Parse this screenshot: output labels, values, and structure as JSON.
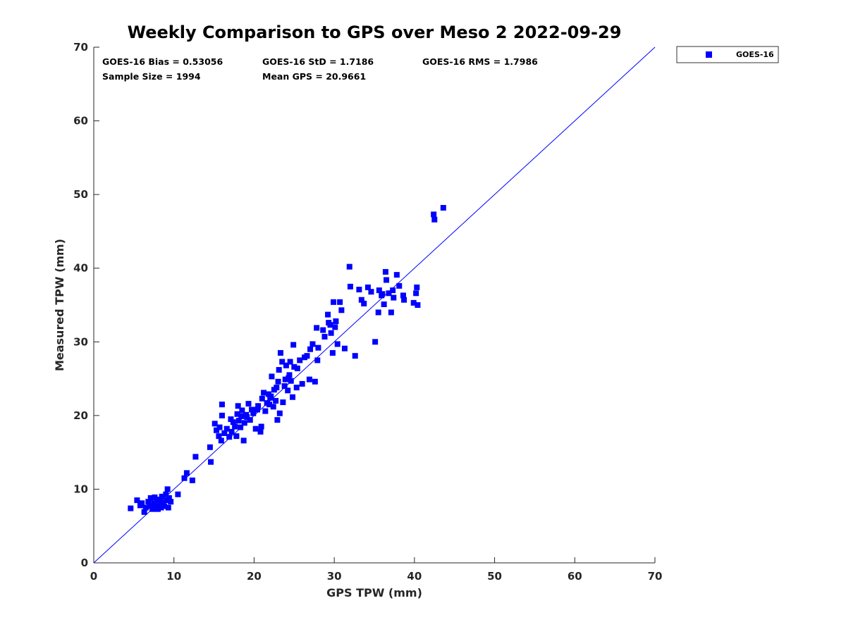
{
  "chart_data": {
    "type": "scatter",
    "title": "Weekly Comparison to GPS over Meso 2 2022-09-29",
    "xlabel": "GPS TPW (mm)",
    "ylabel": "Measured TPW (mm)",
    "xlim": [
      0,
      70
    ],
    "ylim": [
      0,
      70
    ],
    "xticks": [
      "0",
      "10",
      "20",
      "30",
      "40",
      "50",
      "60",
      "70"
    ],
    "yticks": [
      "0",
      "10",
      "20",
      "30",
      "40",
      "50",
      "60",
      "70"
    ],
    "grid": false,
    "legend": {
      "placement": "outside-top-right",
      "entries": [
        "GOES-16"
      ]
    },
    "reference_line": {
      "from": [
        0,
        0
      ],
      "to": [
        70,
        70
      ],
      "color": "#0000ff"
    },
    "stats": [
      "GOES-16 Bias = 0.53056",
      "GOES-16 StD = 1.7186",
      "GOES-16 RMS = 1.7986",
      "Sample Size = 1994",
      "Mean GPS = 20.9661"
    ],
    "series": [
      {
        "name": "GOES-16",
        "color": "#0000ff",
        "marker": "square",
        "points": [
          [
            4.6,
            7.4
          ],
          [
            5.4,
            8.5
          ],
          [
            5.8,
            7.8
          ],
          [
            6.0,
            8.1
          ],
          [
            6.3,
            6.9
          ],
          [
            6.5,
            7.5
          ],
          [
            6.8,
            8.3
          ],
          [
            7.0,
            7.7
          ],
          [
            7.1,
            8.8
          ],
          [
            7.3,
            7.3
          ],
          [
            7.5,
            8.1
          ],
          [
            7.7,
            7.6
          ],
          [
            7.9,
            8.5
          ],
          [
            8.0,
            7.3
          ],
          [
            8.2,
            8.0
          ],
          [
            8.4,
            7.5
          ],
          [
            8.5,
            9.0
          ],
          [
            8.6,
            8.2
          ],
          [
            8.8,
            7.7
          ],
          [
            9.0,
            9.3
          ],
          [
            9.1,
            8.5
          ],
          [
            9.2,
            10.0
          ],
          [
            9.3,
            7.5
          ],
          [
            9.4,
            8.8
          ],
          [
            9.6,
            8.3
          ],
          [
            7.6,
            8.9
          ],
          [
            8.3,
            8.6
          ],
          [
            10.5,
            9.3
          ],
          [
            11.3,
            11.5
          ],
          [
            11.6,
            12.2
          ],
          [
            12.3,
            11.2
          ],
          [
            12.7,
            14.4
          ],
          [
            14.5,
            15.7
          ],
          [
            14.6,
            13.7
          ],
          [
            15.1,
            18.9
          ],
          [
            15.3,
            18.0
          ],
          [
            15.6,
            17.2
          ],
          [
            15.7,
            18.4
          ],
          [
            15.9,
            16.6
          ],
          [
            16.0,
            20.0
          ],
          [
            16.0,
            21.5
          ],
          [
            16.3,
            17.6
          ],
          [
            16.6,
            18.2
          ],
          [
            16.9,
            17.1
          ],
          [
            17.2,
            17.8
          ],
          [
            17.4,
            19.1
          ],
          [
            17.6,
            18.5
          ],
          [
            17.8,
            17.2
          ],
          [
            17.9,
            20.2
          ],
          [
            18.0,
            21.3
          ],
          [
            18.1,
            19.3
          ],
          [
            18.3,
            18.4
          ],
          [
            18.5,
            20.7
          ],
          [
            18.7,
            16.6
          ],
          [
            18.8,
            19.0
          ],
          [
            19.0,
            20.1
          ],
          [
            19.3,
            21.6
          ],
          [
            19.5,
            19.4
          ],
          [
            19.7,
            20.8
          ],
          [
            19.9,
            20.3
          ],
          [
            20.2,
            18.2
          ],
          [
            20.5,
            21.3
          ],
          [
            20.8,
            17.8
          ],
          [
            20.9,
            18.5
          ],
          [
            21.0,
            22.3
          ],
          [
            21.2,
            23.1
          ],
          [
            21.4,
            20.6
          ],
          [
            21.6,
            21.7
          ],
          [
            21.8,
            22.9
          ],
          [
            22.0,
            22.4
          ],
          [
            22.2,
            25.3
          ],
          [
            22.4,
            21.2
          ],
          [
            22.5,
            23.5
          ],
          [
            22.7,
            22.0
          ],
          [
            22.9,
            19.4
          ],
          [
            23.0,
            24.6
          ],
          [
            23.1,
            26.2
          ],
          [
            23.2,
            20.3
          ],
          [
            23.3,
            28.5
          ],
          [
            23.5,
            27.3
          ],
          [
            23.6,
            21.8
          ],
          [
            23.8,
            24.0
          ],
          [
            24.0,
            26.8
          ],
          [
            24.2,
            23.4
          ],
          [
            24.3,
            25.1
          ],
          [
            24.5,
            27.3
          ],
          [
            24.6,
            24.7
          ],
          [
            24.8,
            22.5
          ],
          [
            24.9,
            29.6
          ],
          [
            25.0,
            26.6
          ],
          [
            25.3,
            23.8
          ],
          [
            25.4,
            26.4
          ],
          [
            25.7,
            27.5
          ],
          [
            26.0,
            24.3
          ],
          [
            26.3,
            27.9
          ],
          [
            26.6,
            28.1
          ],
          [
            26.9,
            24.9
          ],
          [
            27.0,
            29.0
          ],
          [
            27.3,
            29.7
          ],
          [
            27.6,
            24.6
          ],
          [
            27.8,
            31.9
          ],
          [
            27.9,
            27.5
          ],
          [
            28.0,
            29.2
          ],
          [
            28.6,
            31.6
          ],
          [
            28.8,
            30.7
          ],
          [
            29.2,
            33.7
          ],
          [
            29.5,
            32.3
          ],
          [
            29.6,
            31.2
          ],
          [
            29.8,
            28.5
          ],
          [
            29.9,
            35.4
          ],
          [
            30.1,
            32.0
          ],
          [
            30.4,
            29.7
          ],
          [
            30.7,
            35.4
          ],
          [
            30.9,
            34.3
          ],
          [
            31.3,
            29.1
          ],
          [
            31.9,
            40.2
          ],
          [
            32.0,
            37.5
          ],
          [
            32.6,
            28.1
          ],
          [
            33.1,
            37.1
          ],
          [
            33.4,
            35.7
          ],
          [
            33.7,
            35.2
          ],
          [
            34.2,
            37.4
          ],
          [
            34.6,
            36.8
          ],
          [
            35.1,
            30.0
          ],
          [
            35.5,
            34.0
          ],
          [
            35.6,
            37.0
          ],
          [
            35.9,
            36.3
          ],
          [
            36.2,
            35.1
          ],
          [
            36.4,
            39.5
          ],
          [
            36.5,
            38.4
          ],
          [
            36.8,
            36.6
          ],
          [
            37.1,
            34.0
          ],
          [
            37.4,
            36.0
          ],
          [
            37.8,
            39.1
          ],
          [
            38.1,
            37.6
          ],
          [
            38.6,
            36.3
          ],
          [
            38.7,
            35.7
          ],
          [
            39.9,
            35.3
          ],
          [
            40.2,
            36.6
          ],
          [
            40.3,
            37.4
          ],
          [
            40.4,
            35.0
          ],
          [
            42.4,
            47.3
          ],
          [
            42.5,
            46.6
          ],
          [
            43.6,
            48.2
          ],
          [
            22.8,
            23.8
          ],
          [
            23.9,
            24.9
          ],
          [
            24.4,
            25.5
          ],
          [
            21.9,
            21.5
          ],
          [
            17.1,
            19.5
          ],
          [
            19.1,
            19.8
          ],
          [
            20.4,
            20.8
          ],
          [
            29.3,
            32.6
          ],
          [
            30.2,
            32.8
          ],
          [
            36.0,
            36.5
          ],
          [
            37.3,
            37.0
          ],
          [
            18.4,
            19.9
          ],
          [
            22.1,
            22.6
          ]
        ]
      }
    ]
  }
}
